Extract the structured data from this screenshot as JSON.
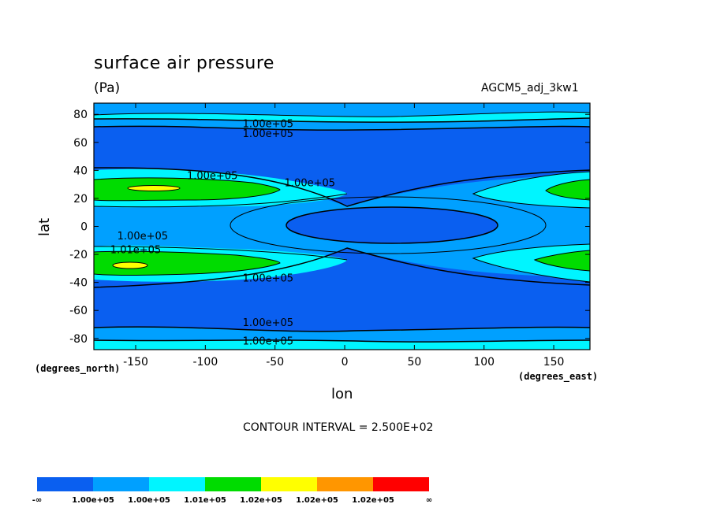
{
  "chart_data": {
    "type": "contour",
    "title": "surface air pressure",
    "units": "(Pa)",
    "run_label": "AGCM5_adj_3kw1",
    "xlabel": "lon",
    "ylabel": "lat",
    "x_unit_note": "(degrees_east)",
    "y_unit_note": "(degrees_north)",
    "xlim": [
      -180,
      176
    ],
    "ylim": [
      -88,
      88
    ],
    "x_ticks": [
      -150,
      -100,
      -50,
      0,
      50,
      100,
      150
    ],
    "x_tick_labels": [
      "-150",
      "-100",
      "-50",
      "0",
      "50",
      "100",
      "150"
    ],
    "y_ticks": [
      -80,
      -60,
      -40,
      -20,
      0,
      20,
      40,
      60,
      80
    ],
    "y_tick_labels": [
      "-80",
      "-60",
      "-40",
      "-20",
      "0",
      "20",
      "40",
      "60",
      "80"
    ],
    "contour_interval_text": "CONTOUR INTERVAL = 2.500E+02",
    "contour_labels": [
      {
        "text": "1.00e+05",
        "lon": -55,
        "lat": 73
      },
      {
        "text": "1.00e+05",
        "lon": -55,
        "lat": 66
      },
      {
        "text": "1.00e+05",
        "lon": -95,
        "lat": 36
      },
      {
        "text": "1.00e+05",
        "lon": -25,
        "lat": 31
      },
      {
        "text": "1.00e+05",
        "lon": -145,
        "lat": -7
      },
      {
        "text": "1.01e+05",
        "lon": -150,
        "lat": -17
      },
      {
        "text": "1.00e+05",
        "lon": -55,
        "lat": -37
      },
      {
        "text": "1.00e+05",
        "lon": -55,
        "lat": -69
      },
      {
        "text": "1.00e+05",
        "lon": -55,
        "lat": -82
      }
    ],
    "legend": {
      "colors": [
        "#0a5ff0",
        "#00a0ff",
        "#00f5ff",
        "#00dc00",
        "#ffff00",
        "#ff9600",
        "#ff0000"
      ],
      "labels": [
        "-∞",
        "1.00e+05",
        "1.00e+05",
        "1.01e+05",
        "1.02e+05",
        "1.02e+05",
        "1.02e+05",
        "∞"
      ]
    },
    "grid": false
  }
}
